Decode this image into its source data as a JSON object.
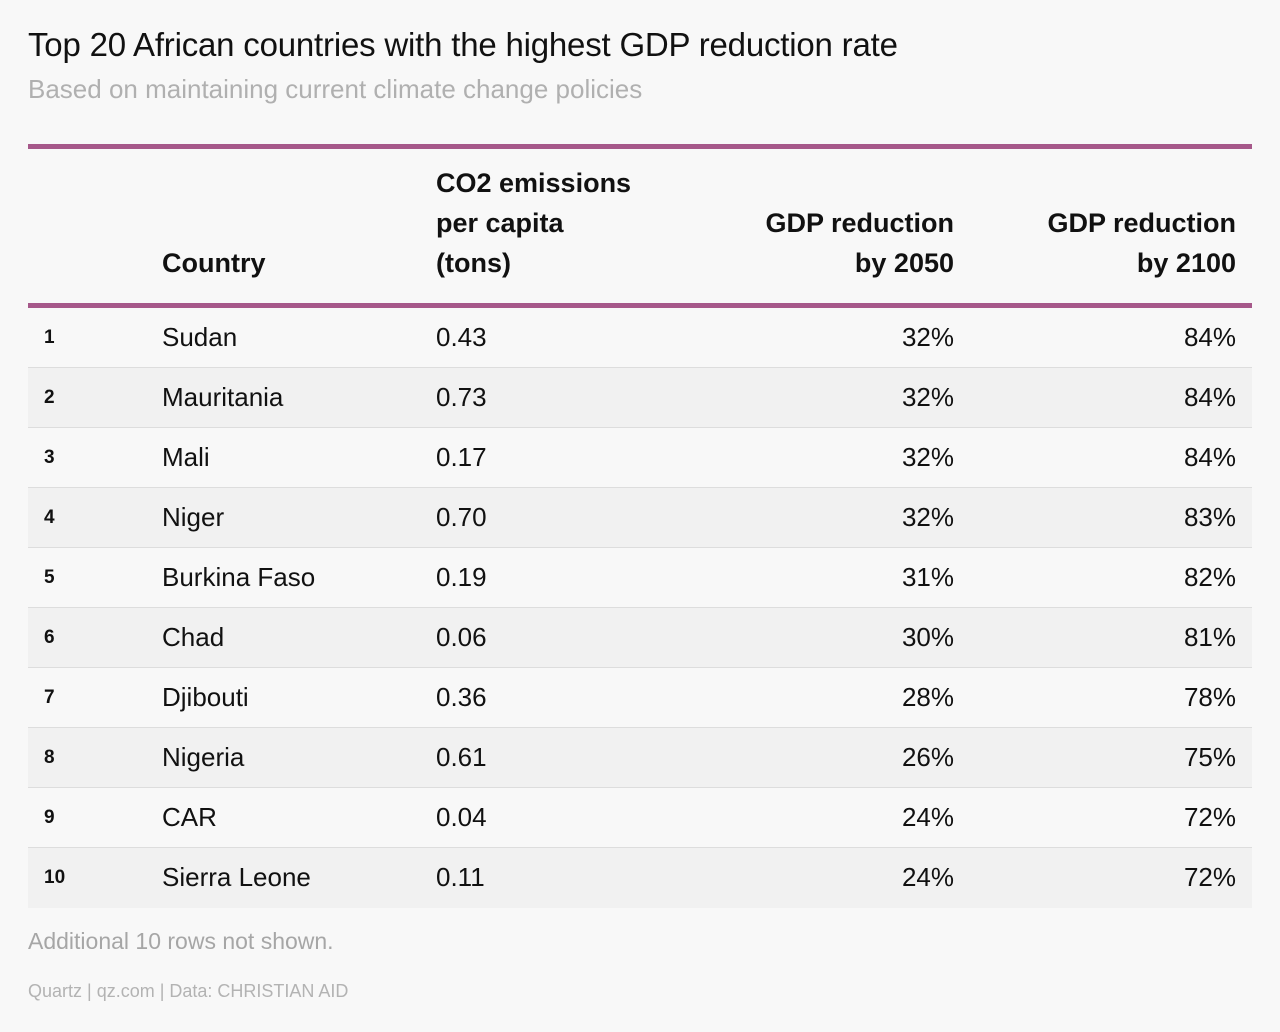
{
  "title": "Top 20 African countries with the highest GDP reduction rate",
  "subtitle": "Based on maintaining current climate change policies",
  "colors": {
    "accent_rule": "#a6588a",
    "row_alt": "#f1f1f1",
    "background": "#f8f8f8"
  },
  "chart_data": {
    "type": "table",
    "columns": [
      {
        "key": "rank",
        "label": ""
      },
      {
        "key": "country",
        "label": "Country"
      },
      {
        "key": "co2",
        "label_lines": [
          "CO2 emissions",
          "per capita",
          "(tons)"
        ]
      },
      {
        "key": "gdp_2050",
        "label_lines": [
          "GDP reduction",
          "by 2050"
        ]
      },
      {
        "key": "gdp_2100",
        "label_lines": [
          "GDP reduction",
          "by 2100"
        ]
      }
    ],
    "rows": [
      {
        "rank": "1",
        "country": "Sudan",
        "co2": "0.43",
        "gdp_2050": "32%",
        "gdp_2100": "84%"
      },
      {
        "rank": "2",
        "country": "Mauritania",
        "co2": "0.73",
        "gdp_2050": "32%",
        "gdp_2100": "84%"
      },
      {
        "rank": "3",
        "country": "Mali",
        "co2": "0.17",
        "gdp_2050": "32%",
        "gdp_2100": "84%"
      },
      {
        "rank": "4",
        "country": "Niger",
        "co2": "0.70",
        "gdp_2050": "32%",
        "gdp_2100": "83%"
      },
      {
        "rank": "5",
        "country": "Burkina Faso",
        "co2": "0.19",
        "gdp_2050": "31%",
        "gdp_2100": "82%"
      },
      {
        "rank": "6",
        "country": "Chad",
        "co2": "0.06",
        "gdp_2050": "30%",
        "gdp_2100": "81%"
      },
      {
        "rank": "7",
        "country": "Djibouti",
        "co2": "0.36",
        "gdp_2050": "28%",
        "gdp_2100": "78%"
      },
      {
        "rank": "8",
        "country": "Nigeria",
        "co2": "0.61",
        "gdp_2050": "26%",
        "gdp_2100": "75%"
      },
      {
        "rank": "9",
        "country": "CAR",
        "co2": "0.04",
        "gdp_2050": "24%",
        "gdp_2100": "72%"
      },
      {
        "rank": "10",
        "country": "Sierra Leone",
        "co2": "0.11",
        "gdp_2050": "24%",
        "gdp_2100": "72%"
      }
    ]
  },
  "note": "Additional 10 rows not shown.",
  "source": "Quartz | qz.com | Data: CHRISTIAN AID"
}
